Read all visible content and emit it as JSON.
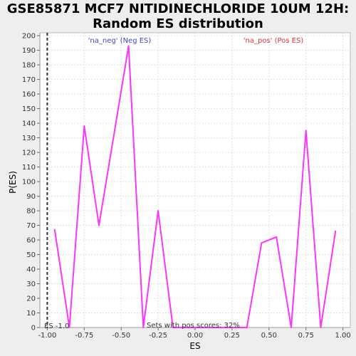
{
  "chart_data": {
    "type": "line",
    "title_line1": "GSE85871 MCF7 NITIDINECHLORIDE 10UM 12H:",
    "title_line2": "Random ES distribution",
    "xlabel": "ES",
    "ylabel": "P(ES)",
    "xlim": [
      -1.05,
      1.05
    ],
    "ylim": [
      0,
      202
    ],
    "x_ticks": [
      "-1.00",
      "-0.75",
      "-0.50",
      "-0.25",
      "0.00",
      "0.25",
      "0.50",
      "0.75",
      "1.00"
    ],
    "x_tick_values": [
      -1.0,
      -0.75,
      -0.5,
      -0.25,
      0.0,
      0.25,
      0.5,
      0.75,
      1.0
    ],
    "y_ticks": [
      0,
      10,
      20,
      30,
      40,
      50,
      60,
      70,
      80,
      90,
      100,
      110,
      120,
      130,
      140,
      150,
      160,
      170,
      180,
      190,
      200
    ],
    "grid": true,
    "series_color": "#ff33ff",
    "observed_line_x": -1.0,
    "x": [
      -0.95,
      -0.85,
      -0.75,
      -0.65,
      -0.45,
      -0.35,
      -0.25,
      -0.15,
      -0.05,
      0.05,
      0.15,
      0.25,
      0.35,
      0.45,
      0.55,
      0.65,
      0.75,
      0.85,
      0.95
    ],
    "values": [
      67,
      0,
      138,
      70,
      193,
      0,
      80,
      0,
      0,
      0,
      0,
      0,
      0,
      58,
      62,
      0,
      135,
      0,
      66
    ],
    "annotations": {
      "neg": "'na_neg' (Neg ES)",
      "pos": "'na_pos' (Pos ES)",
      "es_label": "ES -1.0",
      "sets_with_pos": "Sets with pos scores: 32%"
    },
    "colors": {
      "neg": "#4444cc",
      "pos": "#dd3333",
      "background": "#eeeeee",
      "plot_bg": "#ffffff",
      "grid": "#e0e0e0"
    }
  }
}
